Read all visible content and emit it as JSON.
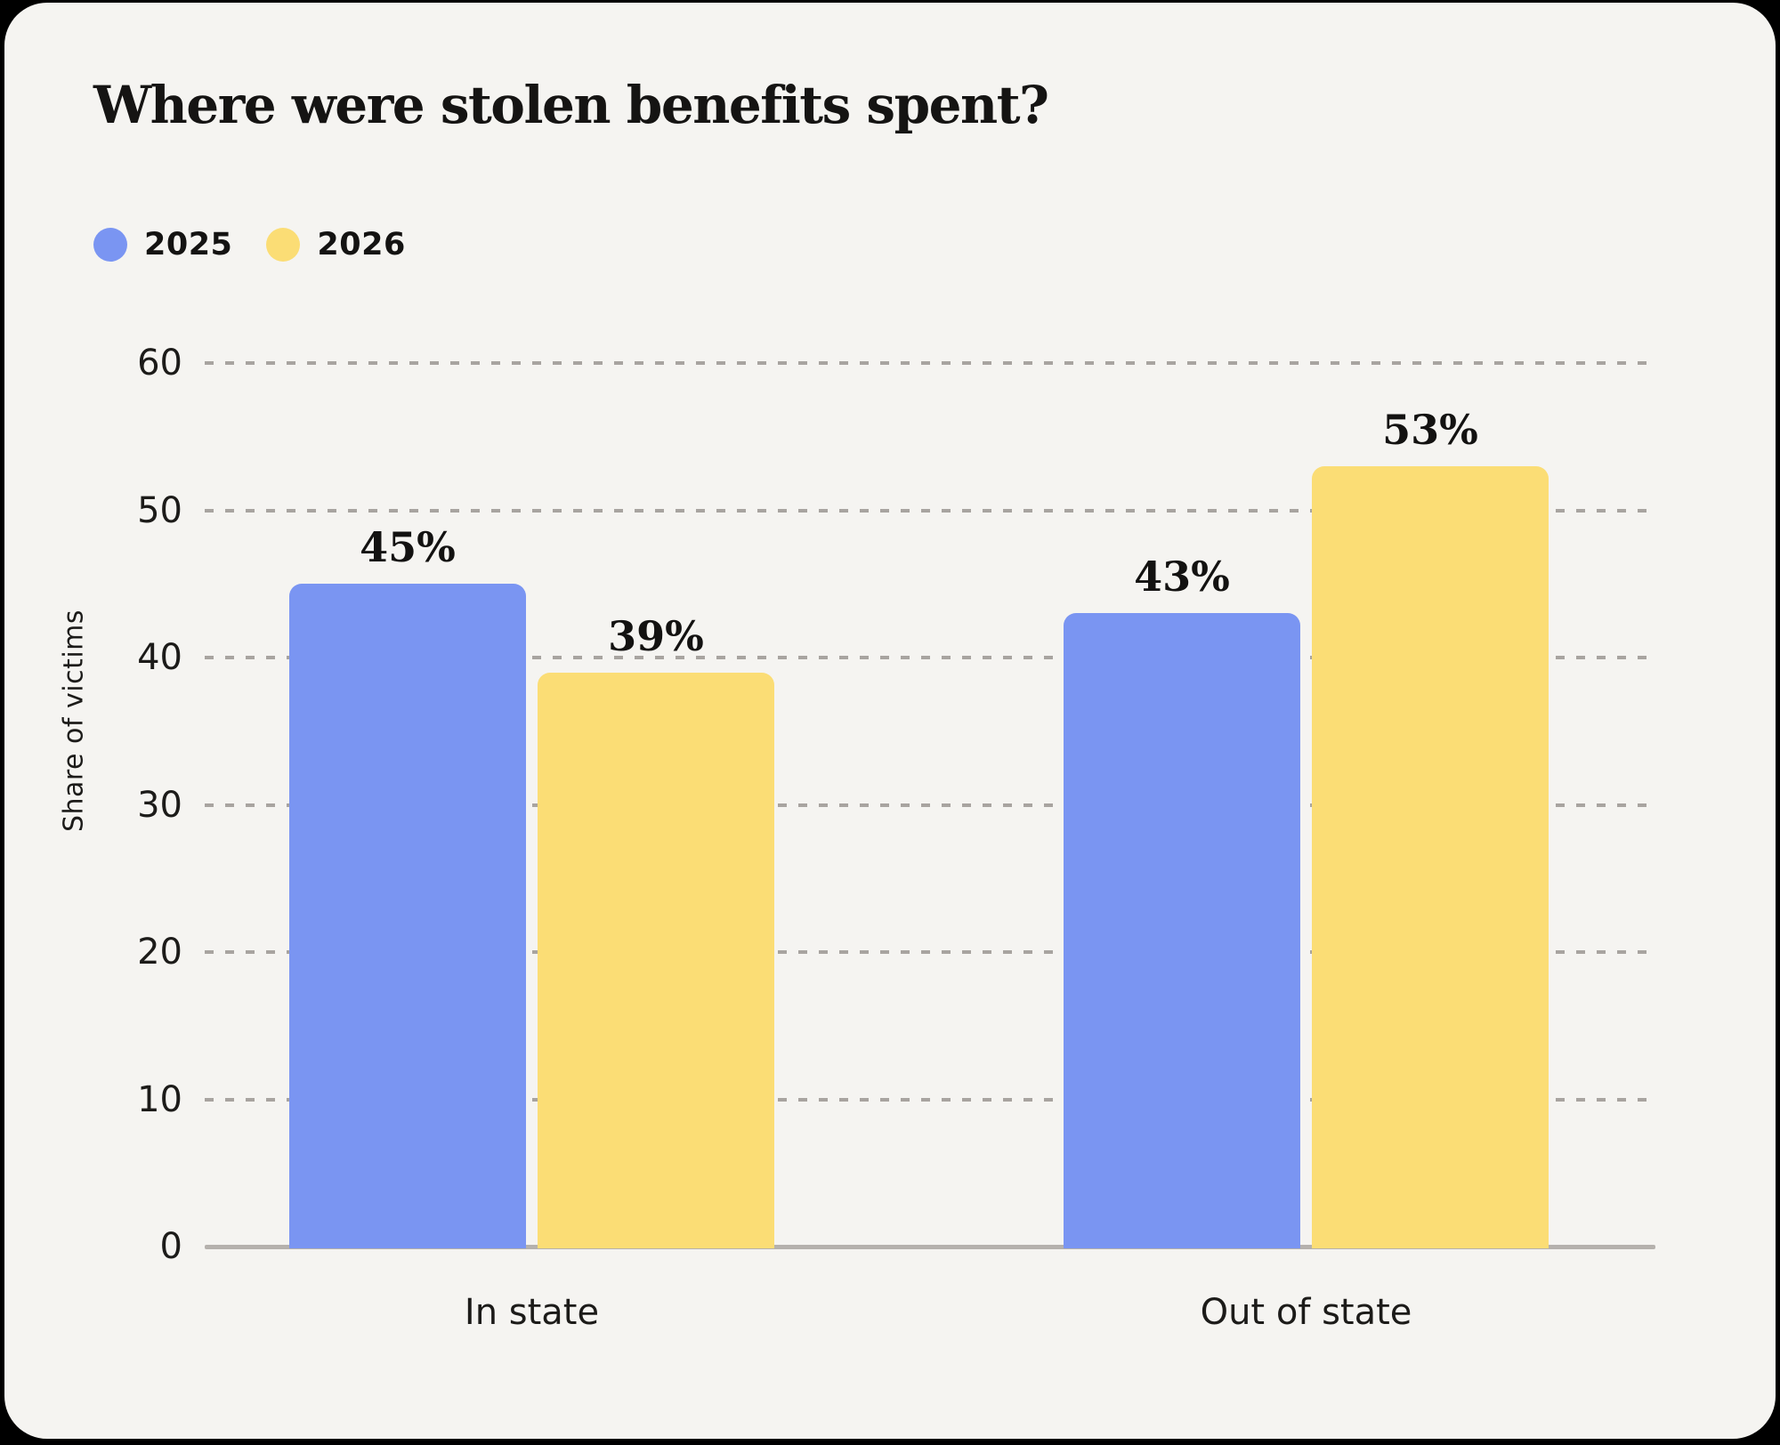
{
  "page": {
    "background": "#000000",
    "card_background": "#f5f4f1"
  },
  "chart_data": {
    "type": "bar",
    "title": "Where were stolen benefits spent?",
    "ylabel": "Share of victims",
    "xlabel": "",
    "categories": [
      "In state",
      "Out of state"
    ],
    "series": [
      {
        "name": "2025",
        "color": "#7a95f2",
        "values": [
          45,
          43
        ]
      },
      {
        "name": "2026",
        "color": "#fbdd75",
        "values": [
          39,
          53
        ]
      }
    ],
    "value_suffix": "%",
    "ylim": [
      0,
      60
    ],
    "yticks": [
      0,
      10,
      20,
      30,
      40,
      50,
      60
    ],
    "grid": "horizontal-dashed",
    "legend_position": "top-left",
    "colors": {
      "grid": "#a8a4a0",
      "axis": "#b5b1ad",
      "text": "#1c1b19",
      "title": "#151413"
    }
  }
}
